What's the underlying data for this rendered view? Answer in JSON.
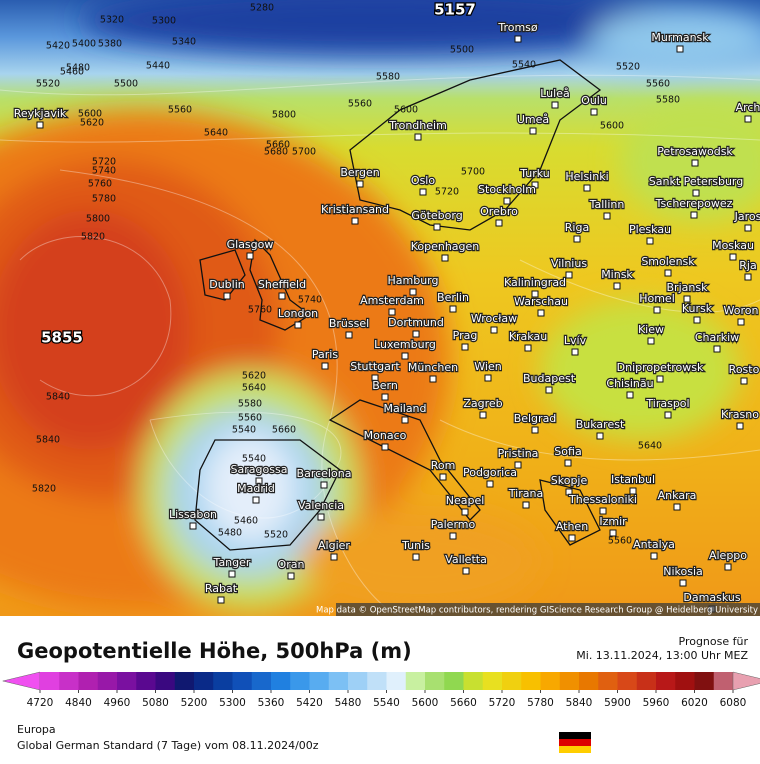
{
  "map": {
    "high_label": "5855",
    "low_label": "5157",
    "attribution": "Map data © OpenStreetMap contributors, rendering GIScience Research Group @ Heidelberg University",
    "cities": [
      "Reykjavik",
      "Tromsø",
      "Murmansk",
      "Luleå",
      "Oulu",
      "Arch",
      "Trondheim",
      "Umeå",
      "Petrosawodsk",
      "Bergen",
      "Oslo",
      "Turku",
      "Helsinki",
      "Sankt Petersburg",
      "Stockholm",
      "Kristiansand",
      "Göteborg",
      "Orebro",
      "Tallinn",
      "Tscherepowez",
      "Jaros",
      "Glasgow",
      "Kopenhagen",
      "Riga",
      "Pleskau",
      "Moskau",
      "Dublin",
      "Sheffield",
      "Hamburg",
      "Kaliningrad",
      "Vilnius",
      "Minsk",
      "Smolensk",
      "Rja",
      "Brjansk",
      "London",
      "Amsterdam",
      "Berlin",
      "Warschau",
      "Homel",
      "Kursk",
      "Woron",
      "Brüssel",
      "Dortmund",
      "Wrocław",
      "Kiew",
      "Charkiw",
      "Luxemburg",
      "Prag",
      "Krakau",
      "Lvív",
      "Paris",
      "Stuttgart",
      "München",
      "Wien",
      "Dnipropetrowsk",
      "Rosto",
      "Chisinău",
      "Budapest",
      "Bern",
      "Tiraspol",
      "Mailand",
      "Zagreb",
      "Krasno",
      "Belgrad",
      "Bukarest",
      "Monaco",
      "Pristina",
      "Sofia",
      "Rom",
      "Podgorica",
      "Istanbul",
      "Saragossa",
      "Barcelona",
      "Madrid",
      "Skopje",
      "Tirana",
      "Thessaloniki",
      "Ankara",
      "Neapel",
      "Valencia",
      "Lissabon",
      "Palermo",
      "Izmir",
      "Athen",
      "Algier",
      "Tunis",
      "Antalya",
      "Aleppo",
      "Valletta",
      "Tanger",
      "Oran",
      "Nikosia",
      "Rabat",
      "Damaskus"
    ],
    "contour_labels": [
      "5320",
      "5300",
      "5280",
      "5420",
      "5400",
      "5380",
      "5340",
      "5480",
      "5440",
      "5520",
      "5500",
      "5460",
      "5560",
      "5600",
      "5620",
      "5640",
      "5660",
      "5680",
      "5700",
      "5720",
      "5740",
      "5760",
      "5780",
      "5800",
      "5820",
      "5840",
      "5840",
      "5820",
      "5800",
      "5600",
      "5580",
      "5560",
      "5540",
      "5520",
      "5460",
      "5480",
      "5540",
      "5560",
      "5580",
      "5500",
      "5620",
      "5640",
      "5660",
      "5680",
      "5700",
      "5720",
      "5740",
      "5760",
      "5560",
      "5580",
      "5600",
      "5620",
      "5520",
      "5540",
      "5640",
      "5560"
    ]
  },
  "legend": {
    "title": "Geopotentielle Höhe, 500hPa (m)",
    "forecast_label": "Prognose für",
    "forecast_time": "Mi. 13.11.2024, 13:00 Uhr MEZ",
    "ticks": [
      4720,
      4840,
      4960,
      5080,
      5200,
      5300,
      5360,
      5420,
      5480,
      5540,
      5600,
      5660,
      5720,
      5780,
      5840,
      5900,
      5960,
      6020,
      6080
    ],
    "colors": [
      "#f050f0",
      "#e040e0",
      "#c830c8",
      "#b020b0",
      "#9818a8",
      "#7a10a0",
      "#5a0890",
      "#3a0880",
      "#101870",
      "#0a2a88",
      "#0a3ea0",
      "#1050b8",
      "#1868cc",
      "#2080e0",
      "#3a98ea",
      "#58acf0",
      "#7cc0f4",
      "#9ed0f6",
      "#c0e0f8",
      "#e0f0fc",
      "#c8f0a0",
      "#a8e070",
      "#90d850",
      "#c8e030",
      "#e8e020",
      "#f0d010",
      "#f8c000",
      "#f8a800",
      "#f09000",
      "#e87800",
      "#e06010",
      "#d84818",
      "#c83018",
      "#b81818",
      "#a01010",
      "#801010",
      "#c06070",
      "#e8a0b0"
    ],
    "region": "Europa",
    "model": "Global German Standard (7 Tage)  vom  08.11.2024/00z"
  }
}
